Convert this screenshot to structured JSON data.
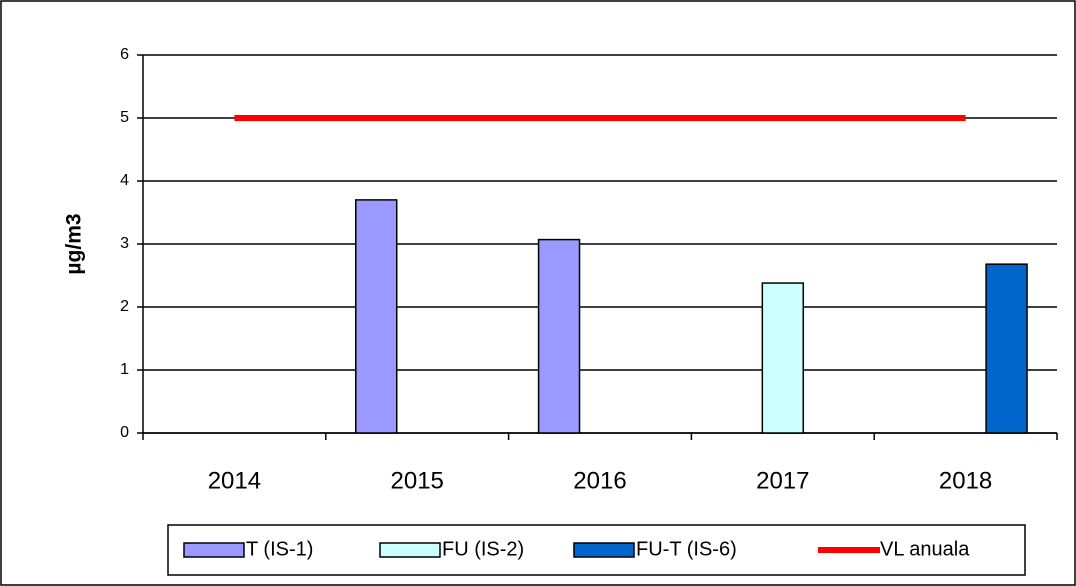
{
  "chart_data": {
    "type": "bar",
    "y_label": "µg/m3",
    "categories": [
      "2014",
      "2015",
      "2016",
      "2017",
      "2018"
    ],
    "series": [
      {
        "name": "T (IS-1)",
        "type": "bar",
        "color": "#9999ff",
        "values": [
          null,
          3.7,
          3.07,
          null,
          null
        ]
      },
      {
        "name": "FU (IS-2)",
        "type": "bar",
        "color": "#ccffff",
        "values": [
          null,
          null,
          null,
          2.38,
          null
        ]
      },
      {
        "name": "FU-T (IS-6)",
        "type": "bar",
        "color": "#0066cc",
        "values": [
          null,
          null,
          null,
          null,
          2.68
        ]
      },
      {
        "name": "VL anuala",
        "type": "line",
        "color": "#ff0000",
        "values": [
          5,
          5,
          5,
          5,
          5
        ]
      }
    ],
    "ylim": [
      0,
      6
    ],
    "yticks": [
      0,
      1,
      2,
      3,
      4,
      5,
      6
    ],
    "grid": true,
    "legend": "bottom"
  }
}
